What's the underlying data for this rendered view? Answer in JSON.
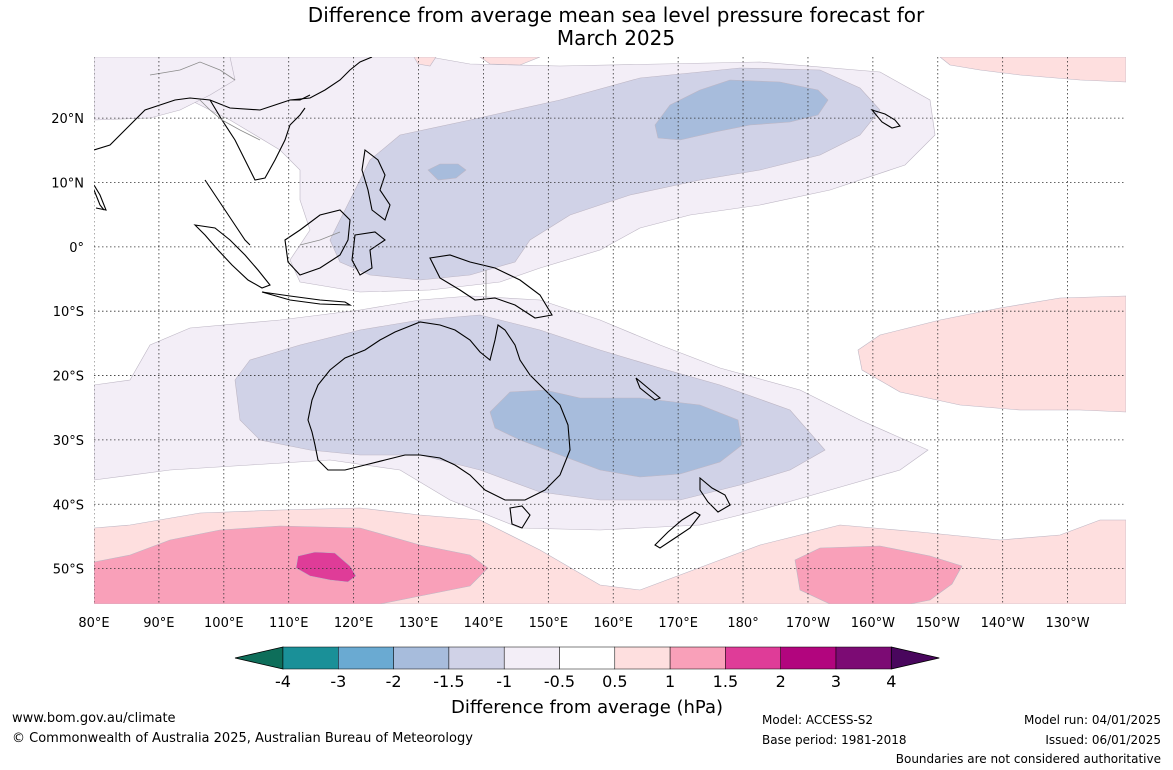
{
  "title": {
    "line1": "Difference from average mean sea level pressure forecast for",
    "line2": "March 2025"
  },
  "map": {
    "lat_labels": [
      "20°N",
      "10°N",
      "0°",
      "10°S",
      "20°S",
      "30°S",
      "40°S",
      "50°S"
    ],
    "lon_labels": [
      "80°E",
      "90°E",
      "100°E",
      "110°E",
      "120°E",
      "130°E",
      "140°E",
      "150°E",
      "160°E",
      "170°E",
      "180°",
      "170°W",
      "160°W",
      "150°W",
      "140°W",
      "130°W"
    ],
    "lat_values": [
      20,
      10,
      0,
      -10,
      -20,
      -30,
      -40,
      -50
    ],
    "lon_values": [
      80,
      90,
      100,
      110,
      120,
      130,
      140,
      150,
      160,
      170,
      180,
      -170,
      -160,
      -150,
      -140,
      -130
    ],
    "extent": {
      "lon_min": 80,
      "lon_max": 239,
      "lat_min": -55.5,
      "lat_max": 29.5
    }
  },
  "colorbar": {
    "title": "Difference from average (hPa)",
    "tick_labels": [
      "-4",
      "-3",
      "-2",
      "-1.5",
      "-1",
      "-0.5",
      "0.5",
      "1",
      "1.5",
      "2",
      "3",
      "4"
    ],
    "colors": [
      "#0e6e5a",
      "#1a9098",
      "#6aaad2",
      "#a7bcdc",
      "#d0d2e7",
      "#f3eef7",
      "#ffffff",
      "#fedfdf",
      "#f9a0b9",
      "#df3c98",
      "#b2057e",
      "#7c0b74",
      "#49065d"
    ]
  },
  "footer": {
    "website": "www.bom.gov.au/climate",
    "copyright": "© Commonwealth of Australia 2025, Australian Bureau of Meteorology",
    "model": "Model: ACCESS-S2",
    "base_period": "Base period: 1981-2018",
    "model_run": "Model run: 04/01/2025",
    "issued": "Issued: 06/01/2025",
    "disclaimer": "Boundaries are not considered authoritative"
  }
}
